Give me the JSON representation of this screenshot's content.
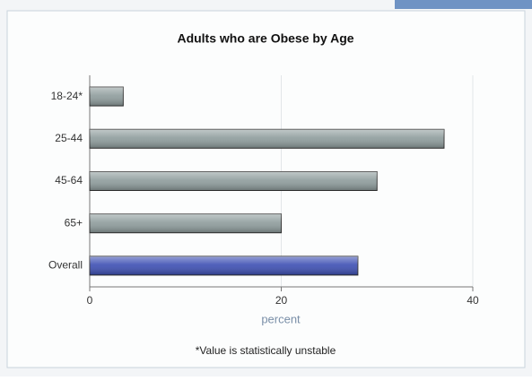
{
  "chart_data": {
    "type": "bar",
    "orientation": "horizontal",
    "title": "Adults who are Obese by Age",
    "categories": [
      "18-24*",
      "25-44",
      "45-64",
      "65+",
      "Overall"
    ],
    "values": [
      3.5,
      37,
      30,
      20,
      28
    ],
    "colors": [
      "#8e9c9c",
      "#8e9c9c",
      "#8e9c9c",
      "#8e9c9c",
      "#3d4fb3"
    ],
    "xlabel": "percent",
    "xlim": [
      0,
      40
    ],
    "xticks": [
      0,
      20,
      40
    ],
    "grid": true,
    "footnote": "*Value is statistically unstable"
  }
}
